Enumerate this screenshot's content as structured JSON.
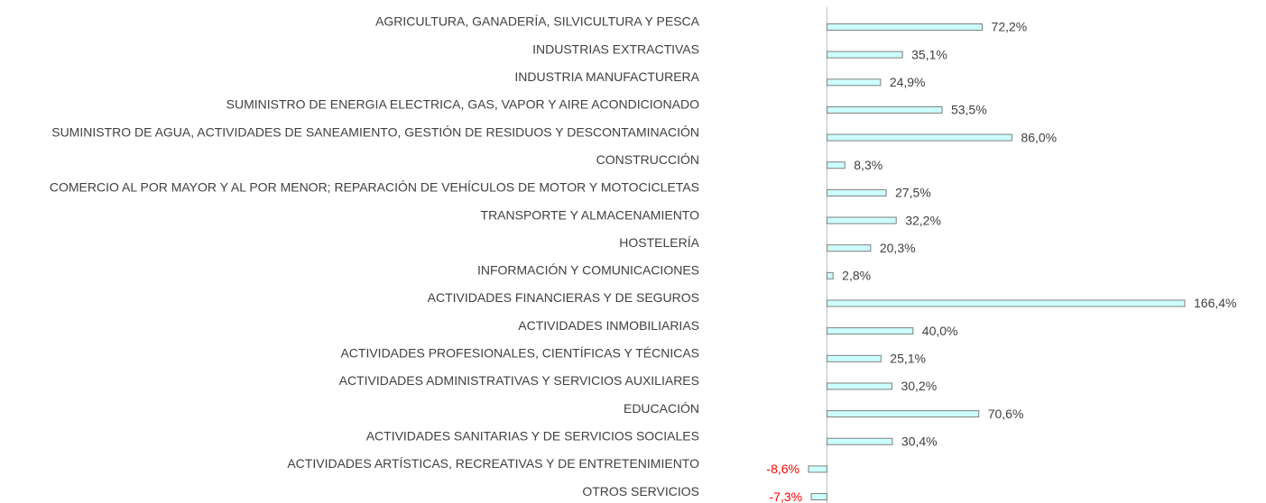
{
  "chart_data": {
    "type": "bar",
    "orientation": "horizontal",
    "categories": [
      "AGRICULTURA, GANADERÍA, SILVICULTURA Y PESCA",
      "INDUSTRIAS EXTRACTIVAS",
      "INDUSTRIA MANUFACTURERA",
      "SUMINISTRO DE ENERGIA ELECTRICA, GAS, VAPOR Y AIRE ACONDICIONADO",
      "SUMINISTRO DE AGUA, ACTIVIDADES DE SANEAMIENTO, GESTIÓN DE RESIDUOS Y DESCONTAMINACIÓN",
      "CONSTRUCCIÓN",
      "COMERCIO AL POR MAYOR Y AL POR MENOR; REPARACIÓN DE VEHÍCULOS DE MOTOR Y MOTOCICLETAS",
      "TRANSPORTE Y ALMACENAMIENTO",
      "HOSTELERÍA",
      "INFORMACIÓN Y COMUNICACIONES",
      "ACTIVIDADES FINANCIERAS Y DE SEGUROS",
      "ACTIVIDADES INMOBILIARIAS",
      "ACTIVIDADES PROFESIONALES, CIENTÍFICAS Y TÉCNICAS",
      "ACTIVIDADES ADMINISTRATIVAS Y SERVICIOS AUXILIARES",
      "EDUCACIÓN",
      "ACTIVIDADES SANITARIAS Y DE SERVICIOS SOCIALES",
      "ACTIVIDADES ARTÍSTICAS, RECREATIVAS Y DE ENTRETENIMIENTO",
      "OTROS SERVICIOS"
    ],
    "values": [
      72.2,
      35.1,
      24.9,
      53.5,
      86.0,
      8.3,
      27.5,
      32.2,
      20.3,
      2.8,
      166.4,
      40.0,
      25.1,
      30.2,
      70.6,
      30.4,
      -8.6,
      -7.3
    ],
    "value_labels": [
      "72,2%",
      "35,1%",
      "24,9%",
      "53,5%",
      "86,0%",
      "8,3%",
      "27,5%",
      "32,2%",
      "20,3%",
      "2,8%",
      "166,4%",
      "40,0%",
      "25,1%",
      "30,2%",
      "70,6%",
      "30,4%",
      "-8,6%",
      "-7,3%"
    ],
    "color": "#ccffff",
    "negative_label_color": "#ff0000"
  }
}
